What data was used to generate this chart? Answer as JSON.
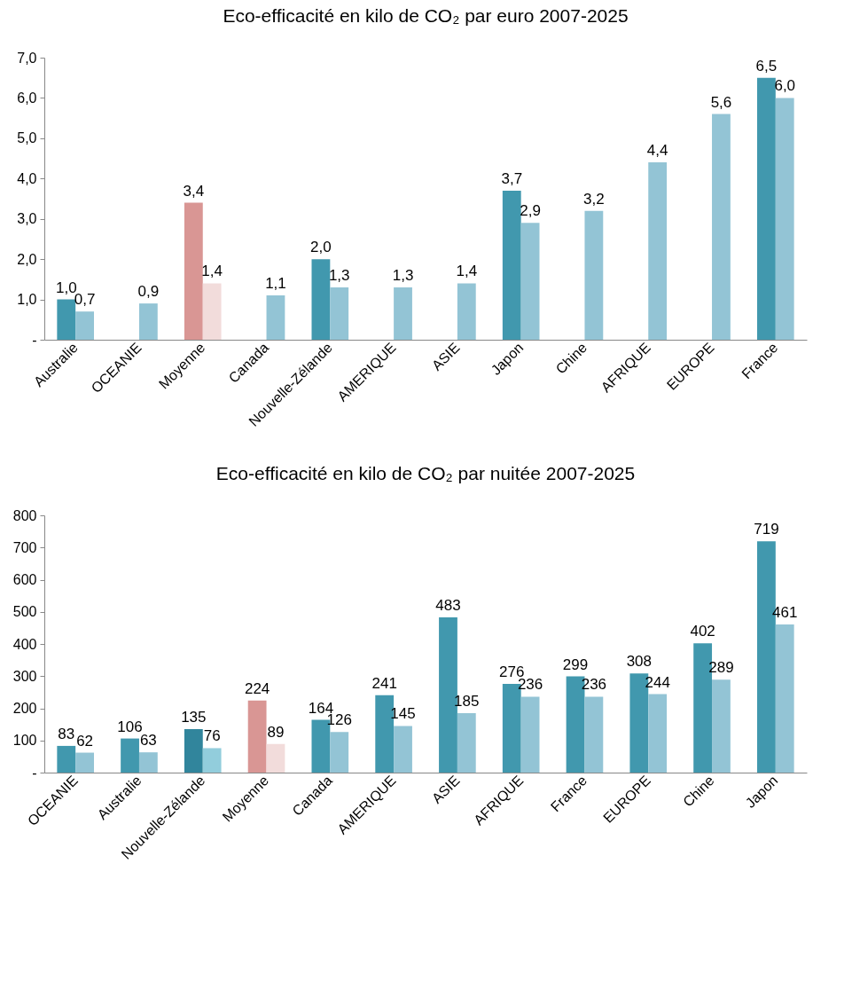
{
  "chart_data": [
    {
      "type": "bar",
      "title": "Eco-efficacité en kilo de CO₂ par euro 2007-2025",
      "categories": [
        "Australie",
        "OCEANIE",
        "Moyenne",
        "Canada",
        "Nouvelle-Zélande",
        "AMERIQUE",
        "ASIE",
        "Japon",
        "Chine",
        "AFRIQUE",
        "EUROPE",
        "France"
      ],
      "ylim": [
        0,
        7
      ],
      "yticks": [
        {
          "value": 0,
          "label": "-"
        },
        {
          "value": 1,
          "label": "1,0"
        },
        {
          "value": 2,
          "label": "2,0"
        },
        {
          "value": 3,
          "label": "3,0"
        },
        {
          "value": 4,
          "label": "4,0"
        },
        {
          "value": 5,
          "label": "5,0"
        },
        {
          "value": 6,
          "label": "6,0"
        },
        {
          "value": 7,
          "label": "7,0"
        }
      ],
      "series": [
        {
          "colors": [
            "#4198ae",
            null,
            "#d99694",
            null,
            "#4198ae",
            null,
            null,
            "#4198ae",
            null,
            null,
            null,
            "#4198ae"
          ],
          "values": [
            1.0,
            null,
            3.4,
            null,
            2.0,
            null,
            null,
            3.7,
            null,
            null,
            null,
            6.5
          ],
          "value_labels": [
            "1,0",
            null,
            "3,4",
            null,
            "2,0",
            null,
            null,
            "3,7",
            null,
            null,
            null,
            "6,5"
          ]
        },
        {
          "colors": [
            "#93c4d5",
            "#93c4d5",
            "#f2dcdb",
            "#93c4d5",
            "#93c4d5",
            "#93c4d5",
            "#93c4d5",
            "#93c4d5",
            "#93c4d5",
            "#93c4d5",
            "#93c4d5",
            "#93c4d5"
          ],
          "values": [
            0.7,
            0.9,
            1.4,
            1.1,
            1.3,
            1.3,
            1.4,
            2.9,
            3.2,
            4.4,
            5.6,
            6.0
          ],
          "value_labels": [
            "0,7",
            "0,9",
            "1,4",
            "1,1",
            "1,3",
            "1,3",
            "1,4",
            "2,9",
            "3,2",
            "4,4",
            "5,6",
            "6,0"
          ]
        }
      ]
    },
    {
      "type": "bar",
      "title": "Eco-efficacité en kilo de CO₂ par nuitée 2007-2025",
      "categories": [
        "OCEANIE",
        "Australie",
        "Nouvelle-Zélande",
        "Moyenne",
        "Canada",
        "AMERIQUE",
        "ASIE",
        "AFRIQUE",
        "France",
        "EUROPE",
        "Chine",
        "Japon"
      ],
      "ylim": [
        0,
        800
      ],
      "yticks": [
        {
          "value": 0,
          "label": "-"
        },
        100,
        200,
        300,
        400,
        500,
        600,
        700,
        800
      ],
      "data_labels": true,
      "series": [
        {
          "colors": [
            "#4198ae",
            "#4198ae",
            "#31859c",
            "#d99694",
            "#4198ae",
            "#4198ae",
            "#4198ae",
            "#4198ae",
            "#4198ae",
            "#4198ae",
            "#4198ae",
            "#4198ae"
          ],
          "values": [
            83,
            106,
            135,
            224,
            164,
            241,
            483,
            276,
            299,
            308,
            402,
            719
          ]
        },
        {
          "colors": [
            "#93c4d5",
            "#93c4d5",
            "#92cddc",
            "#f2dcdb",
            "#93c4d5",
            "#93c4d5",
            "#93c4d5",
            "#93c4d5",
            "#93c4d5",
            "#93c4d5",
            "#93c4d5",
            "#93c4d5"
          ],
          "values": [
            62,
            63,
            76,
            89,
            126,
            145,
            185,
            236,
            236,
            244,
            289,
            461
          ]
        }
      ]
    }
  ]
}
